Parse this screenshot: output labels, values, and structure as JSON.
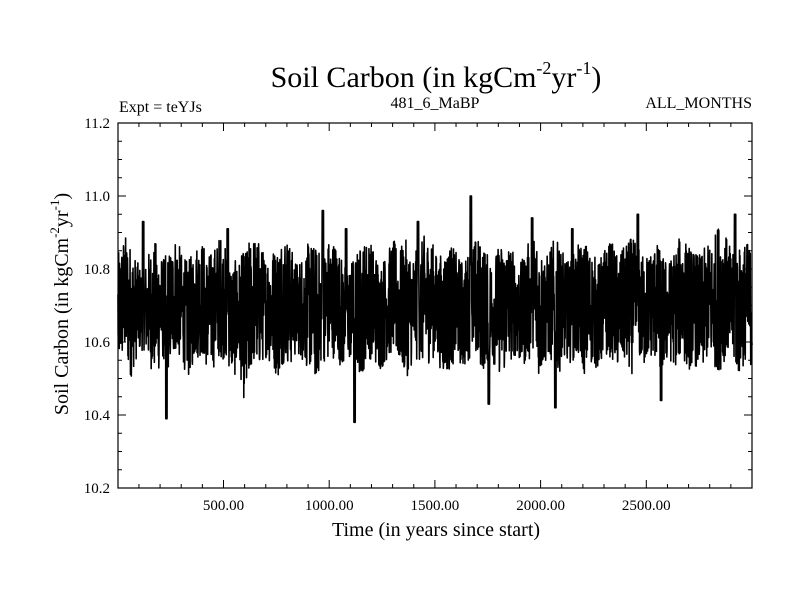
{
  "chart_data": {
    "type": "line",
    "title": "Soil Carbon (in kgCm",
    "title_sup1": "-2",
    "title_mid": "yr",
    "title_sup2": "-1",
    "title_end": ")",
    "subtitle_left": "Expt = teYJs",
    "subtitle_center": "481_6_MaBP",
    "subtitle_right": "ALL_MONTHS",
    "xlabel": "Time (in years since start)",
    "ylabel": "Soil Carbon (in kgCm",
    "ylabel_sup1": "-2",
    "ylabel_mid": "yr",
    "ylabel_sup2": "-1",
    "ylabel_end": ")",
    "xlim": [
      1,
      3000
    ],
    "ylim": [
      10.2,
      11.2
    ],
    "x_ticks": [
      500,
      1000,
      1500,
      2000,
      2500
    ],
    "x_tick_labels": [
      "500.00",
      "1000.00",
      "1500.00",
      "2000.00",
      "2500.00"
    ],
    "y_ticks": [
      10.2,
      10.4,
      10.6,
      10.8,
      11.0,
      11.2
    ],
    "y_tick_labels": [
      "10.2",
      "10.4",
      "10.6",
      "10.8",
      "11.0",
      "11.2"
    ],
    "series": [
      {
        "color": "#000000",
        "sample_step_years": 10,
        "x": [
          1,
          3000
        ],
        "upper_envelope": [
          10.84,
          10.9,
          10.87,
          10.82,
          10.8,
          10.86,
          10.88,
          10.83,
          10.85,
          10.9,
          10.84,
          10.82,
          10.87,
          10.89,
          10.84,
          10.86,
          10.9,
          10.85,
          10.82,
          10.83,
          10.86,
          10.9,
          10.88,
          10.84,
          10.86,
          10.87,
          10.92,
          10.86,
          10.82,
          10.85,
          10.88,
          10.86,
          10.84,
          10.89,
          10.88,
          10.83,
          10.81,
          10.84,
          10.87,
          10.89,
          10.86,
          10.82,
          10.85,
          10.88,
          10.86,
          10.88,
          10.84,
          10.86,
          10.9,
          10.88,
          10.83,
          10.86,
          10.87,
          10.84,
          10.82,
          10.86,
          10.89,
          10.87,
          10.83,
          10.85,
          10.88,
          10.88,
          10.84,
          10.82,
          10.87,
          10.92,
          10.86,
          10.84,
          10.88,
          10.87,
          10.82,
          10.84,
          10.87,
          10.88,
          10.85,
          10.82,
          10.86,
          10.88,
          10.84,
          10.86,
          10.89,
          10.87,
          10.84,
          10.85,
          10.88,
          10.84,
          10.82,
          10.86,
          10.9,
          10.87,
          10.85,
          10.84,
          10.87,
          10.88,
          10.95,
          10.89,
          10.84,
          10.86,
          10.88,
          10.86
        ],
        "lower_envelope": [
          10.52,
          10.55,
          10.5,
          10.56,
          10.58,
          10.53,
          10.5,
          10.55,
          10.52,
          10.57,
          10.54,
          10.5,
          10.55,
          10.56,
          10.52,
          10.53,
          10.56,
          10.54,
          10.5,
          10.52,
          10.4,
          10.54,
          10.52,
          10.56,
          10.53,
          10.5,
          10.55,
          10.53,
          10.57,
          10.54,
          10.52,
          10.49,
          10.55,
          10.53,
          10.57,
          10.52,
          10.55,
          10.53,
          10.5,
          10.56,
          10.54,
          10.52,
          10.55,
          10.57,
          10.53,
          10.5,
          10.54,
          10.55,
          10.52,
          10.56,
          10.54,
          10.5,
          10.53,
          10.55,
          10.52,
          10.56,
          10.54,
          10.52,
          10.55,
          10.53,
          10.5,
          10.54,
          10.56,
          10.52,
          10.55,
          10.53,
          10.5,
          10.55,
          10.54,
          10.52,
          10.56,
          10.53,
          10.55,
          10.5,
          10.54,
          10.52,
          10.55,
          10.56,
          10.52,
          10.54,
          10.5,
          10.55,
          10.52,
          10.56,
          10.54,
          10.51,
          10.55,
          10.53,
          10.56,
          10.52,
          10.54,
          10.5,
          10.55,
          10.53,
          10.52,
          10.56,
          10.54,
          10.5,
          10.55,
          10.53
        ],
        "peaks": [
          [
            120,
            10.93
          ],
          [
            230,
            10.39
          ],
          [
            520,
            10.91
          ],
          [
            970,
            10.96
          ],
          [
            1080,
            10.91
          ],
          [
            1120,
            10.38
          ],
          [
            1420,
            10.93
          ],
          [
            1670,
            11.0
          ],
          [
            1755,
            10.43
          ],
          [
            1960,
            10.94
          ],
          [
            2070,
            10.42
          ],
          [
            2150,
            10.91
          ],
          [
            2460,
            10.95
          ],
          [
            2570,
            10.44
          ],
          [
            2920,
            10.95
          ]
        ]
      }
    ]
  }
}
